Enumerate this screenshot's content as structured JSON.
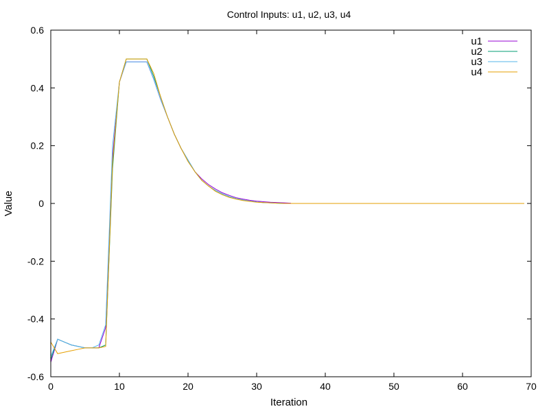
{
  "chart_data": {
    "type": "line",
    "title": "Control Inputs: u1, u2, u3, u4",
    "xlabel": "Iteration",
    "ylabel": "Value",
    "xlim": [
      0,
      70
    ],
    "ylim": [
      -0.6,
      0.6
    ],
    "xticks": [
      0,
      10,
      20,
      30,
      40,
      50,
      60,
      70
    ],
    "yticks": [
      -0.6,
      -0.4,
      -0.2,
      0,
      0.2,
      0.4,
      0.6
    ],
    "grid": false,
    "legend_position": "top-right",
    "series": [
      {
        "name": "u1",
        "color": "#9400d3",
        "x": [
          0,
          1,
          2,
          3,
          4,
          5,
          6,
          7,
          8,
          9,
          10,
          11,
          12,
          13,
          14,
          15,
          16,
          17,
          18,
          19,
          20,
          21,
          22,
          23,
          24,
          25,
          26,
          27,
          28,
          29,
          30,
          31,
          32,
          33,
          34,
          35
        ],
        "values": [
          -0.55,
          -0.47,
          -0.48,
          -0.49,
          -0.495,
          -0.5,
          -0.5,
          -0.5,
          -0.43,
          0.16,
          0.42,
          0.49,
          0.49,
          0.49,
          0.49,
          0.43,
          0.36,
          0.3,
          0.24,
          0.19,
          0.15,
          0.11,
          0.085,
          0.065,
          0.05,
          0.037,
          0.028,
          0.02,
          0.015,
          0.011,
          0.008,
          0.006,
          0.004,
          0.003,
          0.002,
          0.001
        ]
      },
      {
        "name": "u2",
        "color": "#009e73",
        "x": [
          0,
          1,
          2,
          3,
          4,
          5,
          6,
          7,
          8,
          9,
          10,
          11,
          12,
          13,
          14,
          15,
          16,
          17,
          18,
          19,
          20,
          21,
          22,
          23,
          24,
          25,
          26,
          27,
          28,
          29,
          30,
          31,
          32,
          33,
          34,
          35,
          40,
          50,
          60,
          69
        ],
        "values": [
          -0.54,
          -0.47,
          -0.48,
          -0.49,
          -0.495,
          -0.5,
          -0.5,
          -0.5,
          -0.49,
          0.12,
          0.42,
          0.5,
          0.5,
          0.5,
          0.5,
          0.44,
          0.37,
          0.3,
          0.24,
          0.19,
          0.15,
          0.11,
          0.08,
          0.06,
          0.045,
          0.033,
          0.024,
          0.017,
          0.012,
          0.008,
          0.005,
          0.003,
          0.002,
          0.001,
          0.0,
          0.0,
          0.0,
          0.0,
          0.0,
          0.0
        ]
      },
      {
        "name": "u3",
        "color": "#56b4e9",
        "x": [
          0,
          1,
          2,
          3,
          4,
          5,
          6,
          7,
          8,
          9,
          10,
          11,
          12,
          13,
          14,
          15,
          16,
          17,
          18,
          19,
          20,
          21,
          22,
          23,
          24,
          25,
          26,
          27,
          28,
          29,
          30,
          31,
          32,
          33,
          34,
          35,
          40,
          50,
          60,
          69
        ],
        "values": [
          -0.53,
          -0.47,
          -0.48,
          -0.49,
          -0.495,
          -0.5,
          -0.5,
          -0.49,
          -0.42,
          0.2,
          0.42,
          0.49,
          0.49,
          0.49,
          0.49,
          0.43,
          0.36,
          0.3,
          0.24,
          0.19,
          0.15,
          0.11,
          0.08,
          0.06,
          0.045,
          0.033,
          0.024,
          0.017,
          0.012,
          0.008,
          0.005,
          0.003,
          0.002,
          0.001,
          0.0,
          0.0,
          0.0,
          0.0,
          0.0,
          0.0
        ]
      },
      {
        "name": "u4",
        "color": "#e69f00",
        "x": [
          0,
          1,
          2,
          3,
          4,
          5,
          6,
          7,
          8,
          9,
          10,
          11,
          12,
          13,
          14,
          15,
          16,
          17,
          18,
          19,
          20,
          21,
          22,
          23,
          24,
          25,
          26,
          27,
          28,
          29,
          30,
          31,
          32,
          33,
          34,
          35,
          40,
          50,
          60,
          69
        ],
        "values": [
          -0.48,
          -0.52,
          -0.515,
          -0.51,
          -0.505,
          -0.5,
          -0.5,
          -0.5,
          -0.495,
          0.14,
          0.42,
          0.5,
          0.5,
          0.5,
          0.5,
          0.45,
          0.37,
          0.3,
          0.24,
          0.19,
          0.145,
          0.11,
          0.08,
          0.06,
          0.042,
          0.03,
          0.021,
          0.015,
          0.01,
          0.007,
          0.004,
          0.003,
          0.002,
          0.001,
          0.0,
          0.0,
          0.0,
          0.0,
          0.0,
          0.0
        ]
      }
    ]
  }
}
